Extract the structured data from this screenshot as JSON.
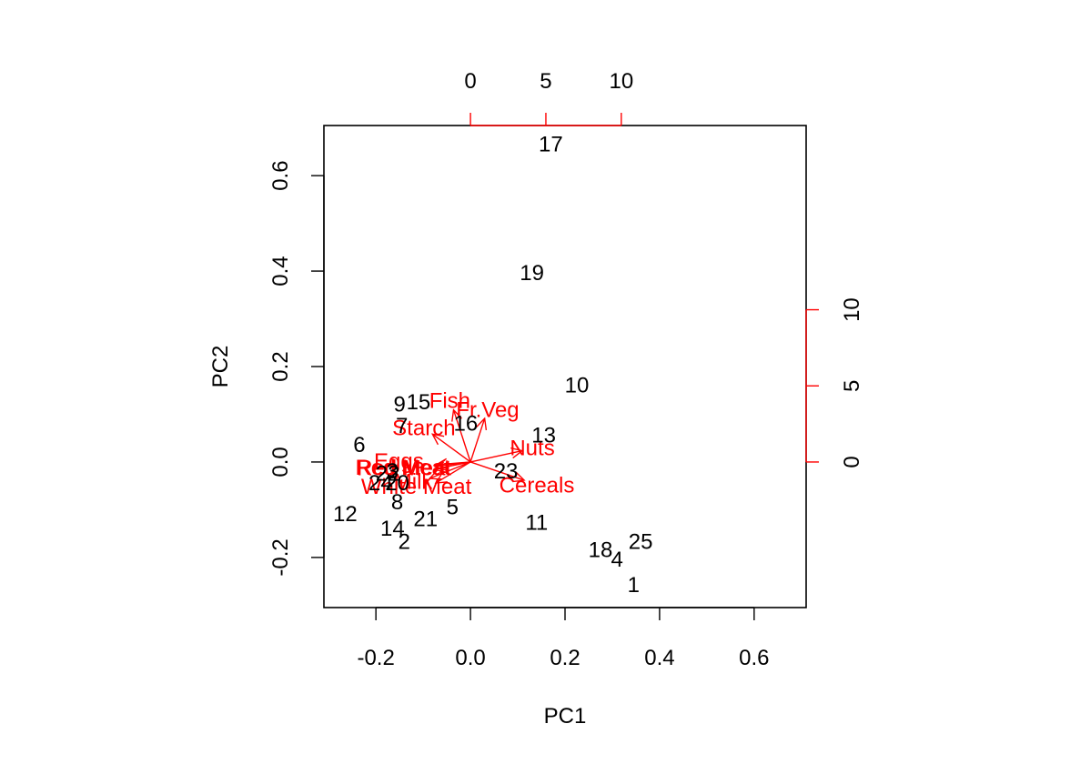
{
  "chart_data": {
    "type": "scatter",
    "subtype": "pca-biplot",
    "xlabel": "PC1",
    "ylabel": "PC2",
    "xlim": [
      -0.31,
      0.71
    ],
    "ylim": [
      -0.305,
      0.705
    ],
    "bottom_ticks": [
      "-0.2",
      "0.0",
      "0.2",
      "0.4",
      "0.6"
    ],
    "bottom_tick_values": [
      -0.2,
      0.0,
      0.2,
      0.4,
      0.6
    ],
    "left_ticks": [
      "-0.2",
      "0.0",
      "0.2",
      "0.4",
      "0.6"
    ],
    "left_tick_values": [
      -0.2,
      0.0,
      0.2,
      0.4,
      0.6
    ],
    "top_ticks": [
      "0",
      "5",
      "10"
    ],
    "top_tick_values": [
      0,
      5,
      10
    ],
    "right_ticks": [
      "0",
      "5",
      "10"
    ],
    "right_tick_values": [
      0,
      5,
      10
    ],
    "loading_scale": 0.0319,
    "points": [
      {
        "label": "1",
        "x": 0.345,
        "y": -0.258
      },
      {
        "label": "2",
        "x": -0.14,
        "y": -0.168
      },
      {
        "label": "3",
        "x": -0.165,
        "y": -0.02
      },
      {
        "label": "4",
        "x": 0.31,
        "y": -0.205
      },
      {
        "label": "5",
        "x": -0.038,
        "y": -0.095
      },
      {
        "label": "6",
        "x": -0.235,
        "y": 0.035
      },
      {
        "label": "7",
        "x": -0.145,
        "y": 0.075
      },
      {
        "label": "8",
        "x": -0.155,
        "y": -0.085
      },
      {
        "label": "9",
        "x": -0.15,
        "y": 0.12
      },
      {
        "label": "10",
        "x": 0.225,
        "y": 0.16
      },
      {
        "label": "11",
        "x": 0.14,
        "y": -0.128
      },
      {
        "label": "12",
        "x": -0.265,
        "y": -0.11
      },
      {
        "label": "13",
        "x": 0.155,
        "y": 0.055
      },
      {
        "label": "14",
        "x": -0.165,
        "y": -0.14
      },
      {
        "label": "15",
        "x": -0.11,
        "y": 0.125
      },
      {
        "label": "16",
        "x": -0.01,
        "y": 0.08
      },
      {
        "label": "17",
        "x": 0.17,
        "y": 0.665
      },
      {
        "label": "18",
        "x": 0.275,
        "y": -0.185
      },
      {
        "label": "19",
        "x": 0.13,
        "y": 0.395
      },
      {
        "label": "20",
        "x": -0.155,
        "y": -0.045
      },
      {
        "label": "21",
        "x": -0.095,
        "y": -0.12
      },
      {
        "label": "22",
        "x": -0.175,
        "y": -0.025
      },
      {
        "label": "23",
        "x": 0.075,
        "y": -0.02
      },
      {
        "label": "24",
        "x": -0.19,
        "y": -0.045
      },
      {
        "label": "25",
        "x": 0.36,
        "y": -0.168
      }
    ],
    "loadings": [
      {
        "label": "Fish",
        "x": -1.12,
        "y": 3.42,
        "label_x": -1.37,
        "label_y": 4.0
      },
      {
        "label": "Fr.Veg",
        "x": 0.94,
        "y": 2.86,
        "label_x": 1.14,
        "label_y": 3.4
      },
      {
        "label": "Starch",
        "x": -2.52,
        "y": 1.83,
        "label_x": -3.09,
        "label_y": 2.22
      },
      {
        "label": "Nuts",
        "x": 3.43,
        "y": 0.74,
        "label_x": 4.1,
        "label_y": 0.88
      },
      {
        "label": "Cereals",
        "x": 3.56,
        "y": -1.2,
        "label_x": 4.4,
        "label_y": -1.57
      },
      {
        "label": "Eggs",
        "x": -2.27,
        "y": -0.18,
        "label_x": -4.75,
        "label_y": 0.02
      },
      {
        "label": "Red Meat",
        "x": -2.35,
        "y": -0.3,
        "label_x": -4.4,
        "label_y": -0.42
      },
      {
        "label": "Red Meat",
        "x": -2.4,
        "y": -0.48,
        "label_x": -4.5,
        "label_y": -0.38
      },
      {
        "label": "Milk",
        "x": -2.7,
        "y": -1.08,
        "label_x": -3.8,
        "label_y": -1.31
      },
      {
        "label": "White Meat",
        "x": -2.3,
        "y": -1.38,
        "label_x": -3.59,
        "label_y": -1.64
      }
    ]
  }
}
